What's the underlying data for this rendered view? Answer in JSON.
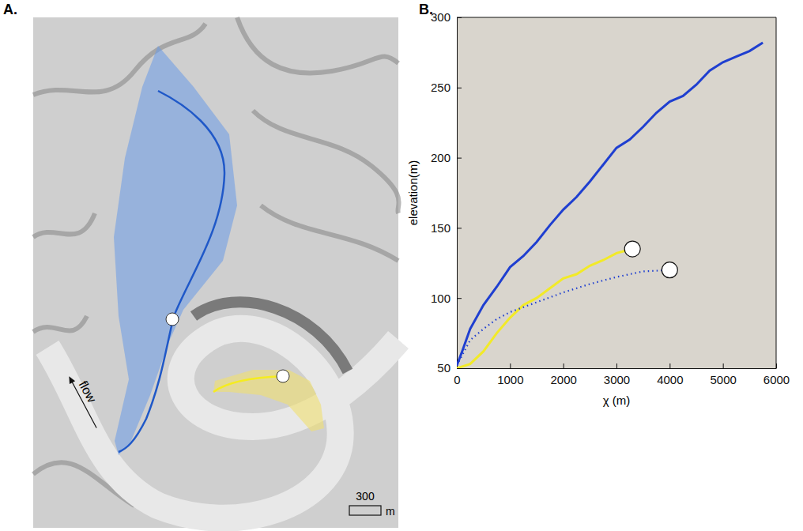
{
  "map": {
    "label": "A.",
    "flow_label": "flow",
    "scale_value": 300,
    "scale_unit": "m"
  },
  "chart_label": "B.",
  "chart_data": {
    "type": "line",
    "x_label": "χ (m)",
    "y_label": "elevation(m)",
    "xlim": [
      0,
      6000
    ],
    "xticks": [
      0,
      1000,
      2000,
      3000,
      4000,
      5000,
      6000
    ],
    "ylim": [
      50,
      300
    ],
    "yticks": [
      50,
      100,
      150,
      200,
      250,
      300
    ],
    "series": [
      {
        "color": "#1f3fd0",
        "line_style": "solid",
        "x": [
          0,
          100,
          250,
          500,
          750,
          1000,
          1250,
          1500,
          1750,
          2000,
          2250,
          2500,
          2750,
          3000,
          3250,
          3500,
          3750,
          4000,
          4250,
          4500,
          4750,
          5000,
          5250,
          5500,
          5750
        ],
        "values": [
          52,
          62,
          78,
          95,
          108,
          122,
          130,
          140,
          152,
          163,
          172,
          183,
          195,
          207,
          213,
          222,
          232,
          240,
          244,
          252,
          262,
          268,
          272,
          276,
          282
        ]
      },
      {
        "color": "#f2ea28",
        "line_style": "solid",
        "marker": "circle-end",
        "x": [
          0,
          250,
          500,
          750,
          1000,
          1250,
          1500,
          1750,
          2000,
          2250,
          2500,
          2750,
          3000,
          3300
        ],
        "values": [
          50,
          53,
          62,
          75,
          86,
          95,
          100,
          107,
          114,
          117,
          123,
          127,
          132,
          135
        ]
      },
      {
        "color": "#1f3fd0",
        "line_style": "dotted",
        "marker": "circle-end",
        "x": [
          0,
          250,
          500,
          750,
          1000,
          1500,
          2000,
          2500,
          3000,
          3500,
          4000
        ],
        "values": [
          52,
          70,
          78,
          85,
          90,
          97,
          104,
          110,
          115,
          119,
          120
        ]
      }
    ]
  }
}
